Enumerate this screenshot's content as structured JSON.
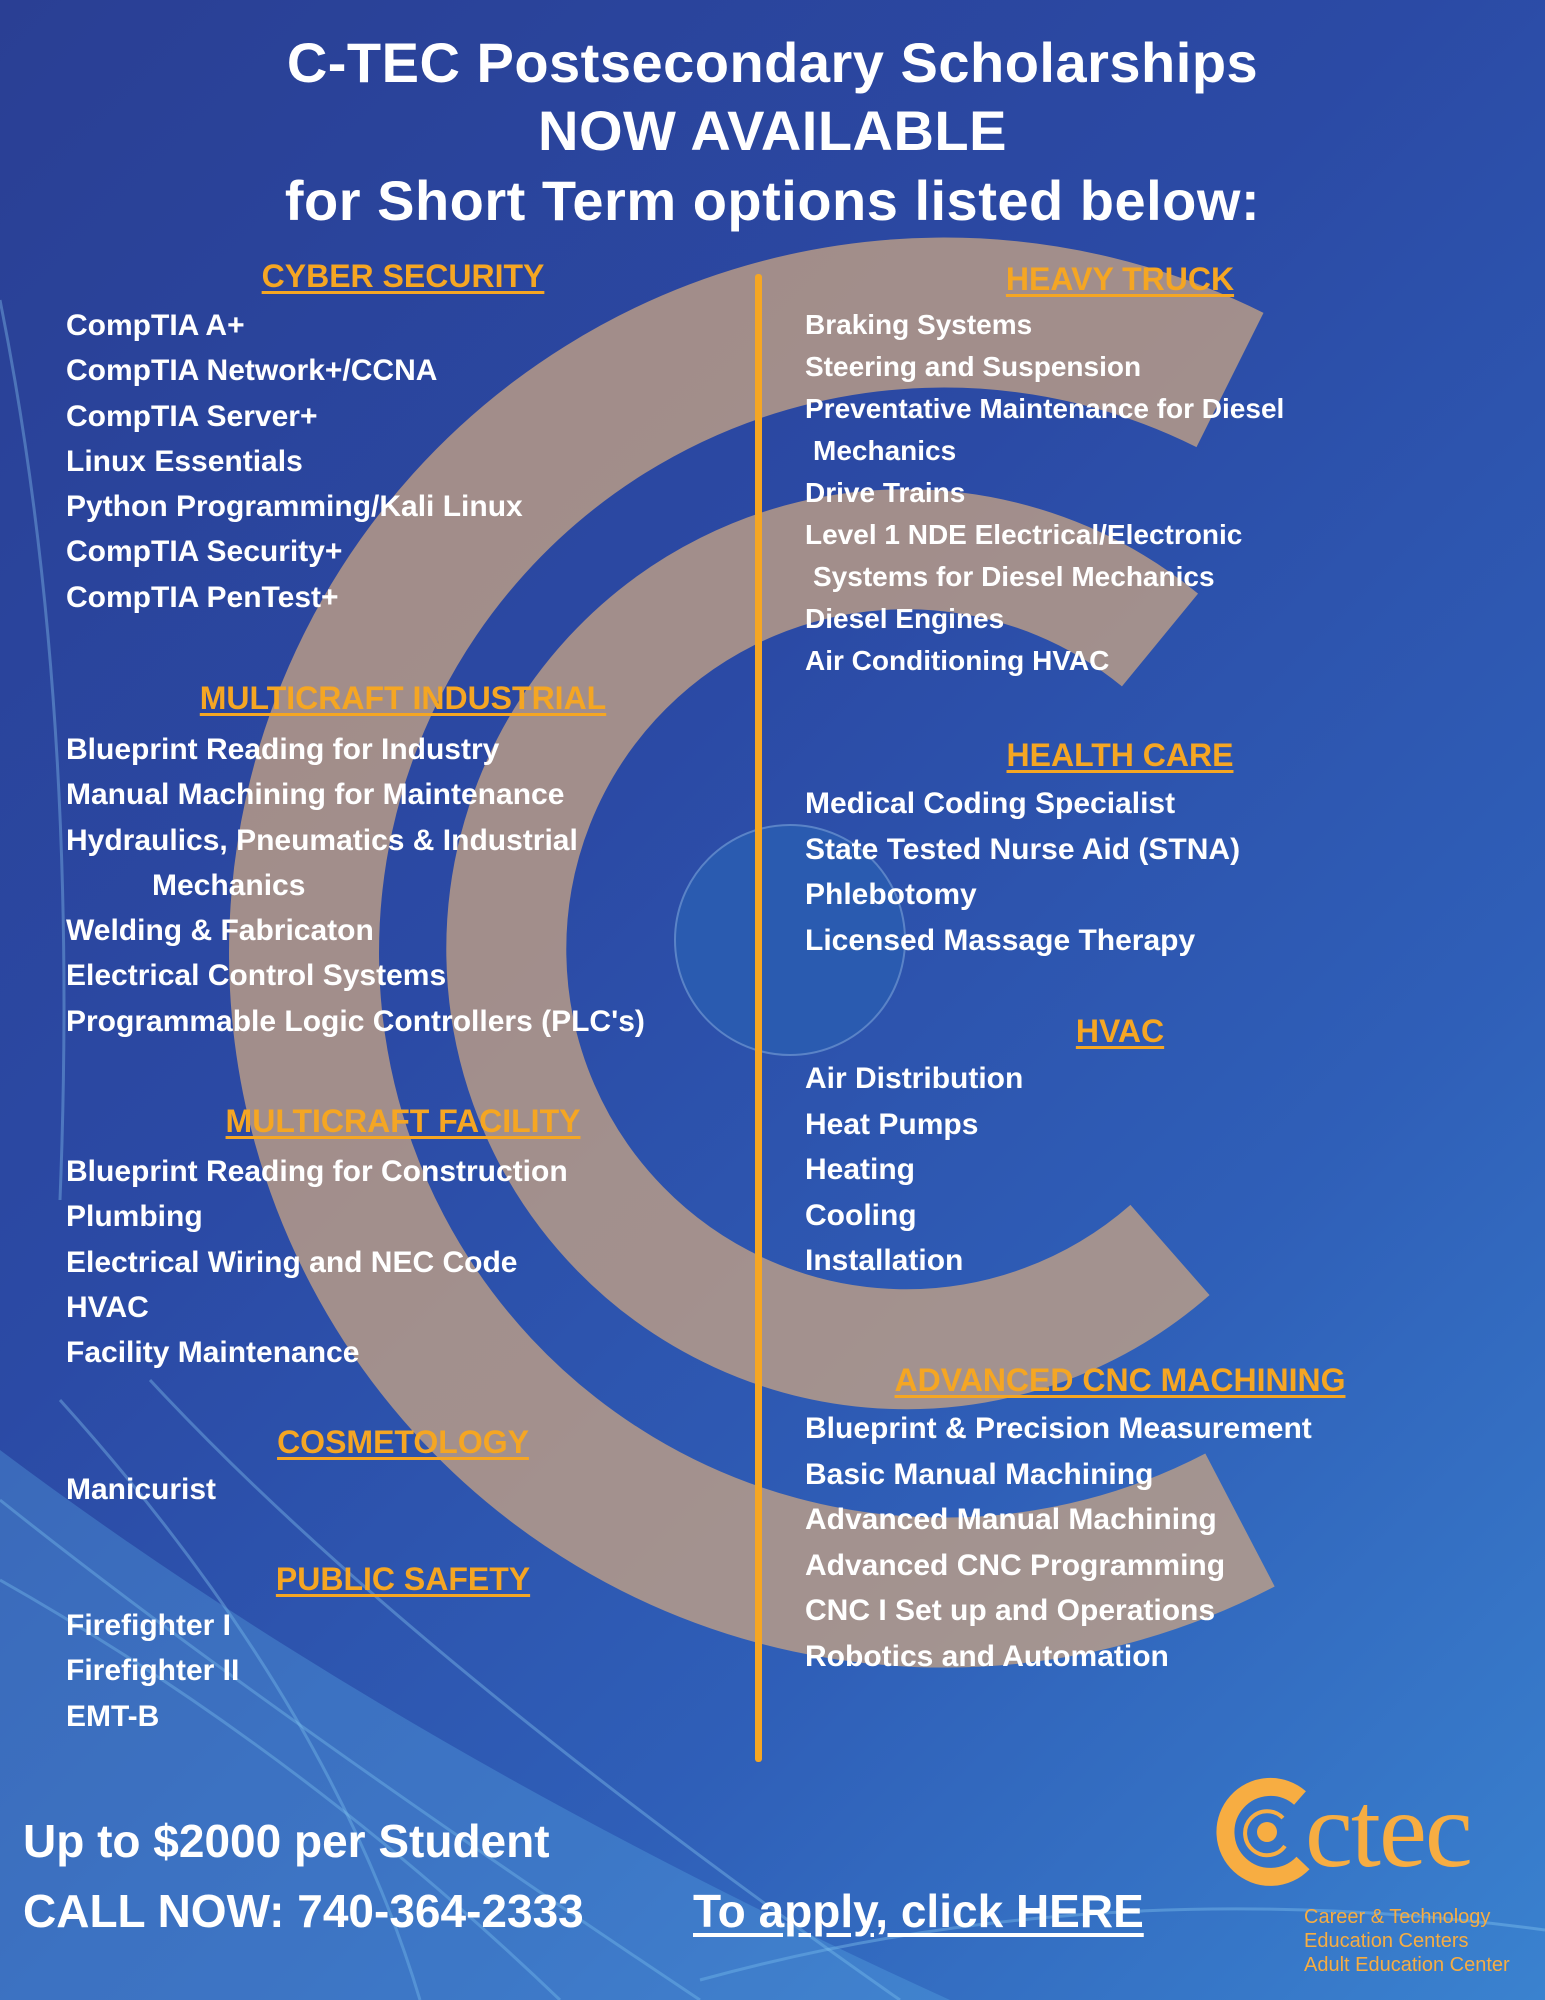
{
  "title": {
    "line1": "C-TEC Postsecondary Scholarships",
    "line2": "NOW AVAILABLE",
    "line3": "for Short Term options listed below:"
  },
  "left": [
    {
      "header": "CYBER SECURITY",
      "items": [
        "CompTIA A+",
        "CompTIA Network+/CCNA",
        "CompTIA Server+",
        "Linux Essentials",
        "Python Programming/Kali Linux",
        "CompTIA Security+",
        "CompTIA PenTest+"
      ]
    },
    {
      "header": "MULTICRAFT INDUSTRIAL",
      "items": [
        "Blueprint Reading for Industry",
        "Manual Machining for Maintenance",
        "Hydraulics, Pneumatics & Industrial",
        "Mechanics",
        "Welding & Fabricaton",
        "Electrical Control Systems",
        "Programmable Logic Controllers (PLC's)"
      ]
    },
    {
      "header": "MULTICRAFT FACILITY",
      "items": [
        "Blueprint Reading for Construction",
        "Plumbing",
        "Electrical Wiring and NEC Code",
        "HVAC",
        "Facility Maintenance"
      ]
    },
    {
      "header": "COSMETOLOGY",
      "items": [
        "Manicurist"
      ]
    },
    {
      "header": "PUBLIC SAFETY",
      "items": [
        "Firefighter I",
        "Firefighter II",
        "EMT-B"
      ]
    }
  ],
  "right": [
    {
      "header": "HEAVY TRUCK",
      "items": [
        "Braking Systems",
        "Steering and Suspension",
        "Preventative Maintenance for Diesel",
        "Mechanics",
        "Drive Trains",
        "Level 1 NDE Electrical/Electronic",
        "Systems for Diesel Mechanics",
        "Diesel Engines",
        "Air Conditioning HVAC"
      ]
    },
    {
      "header": "HEALTH CARE",
      "items": [
        "Medical Coding Specialist",
        "State Tested Nurse Aid (STNA)",
        "Phlebotomy",
        "Licensed Massage Therapy"
      ]
    },
    {
      "header": "HVAC",
      "items": [
        "Air Distribution",
        "Heat Pumps",
        "Heating",
        "Cooling",
        "Installation"
      ]
    },
    {
      "header": "ADVANCED CNC MACHINING",
      "items": [
        "Blueprint & Precision Measurement",
        "Basic Manual Machining",
        "Advanced Manual Machining",
        "Advanced CNC Programming",
        "CNC I Set up and Operations",
        "Robotics and Automation"
      ]
    }
  ],
  "footer": {
    "amount": "Up to $2000 per Student",
    "call": "CALL NOW: 740-364-2333",
    "apply": "To apply, click HERE"
  },
  "logo": {
    "wordmark": "ctec",
    "line1": "Career & Technology",
    "line2": "Education Centers",
    "line3": "Adult Education Center"
  },
  "colors": {
    "accent": "#f5a623",
    "background": "#2b4aa5",
    "text": "#ffffff"
  }
}
